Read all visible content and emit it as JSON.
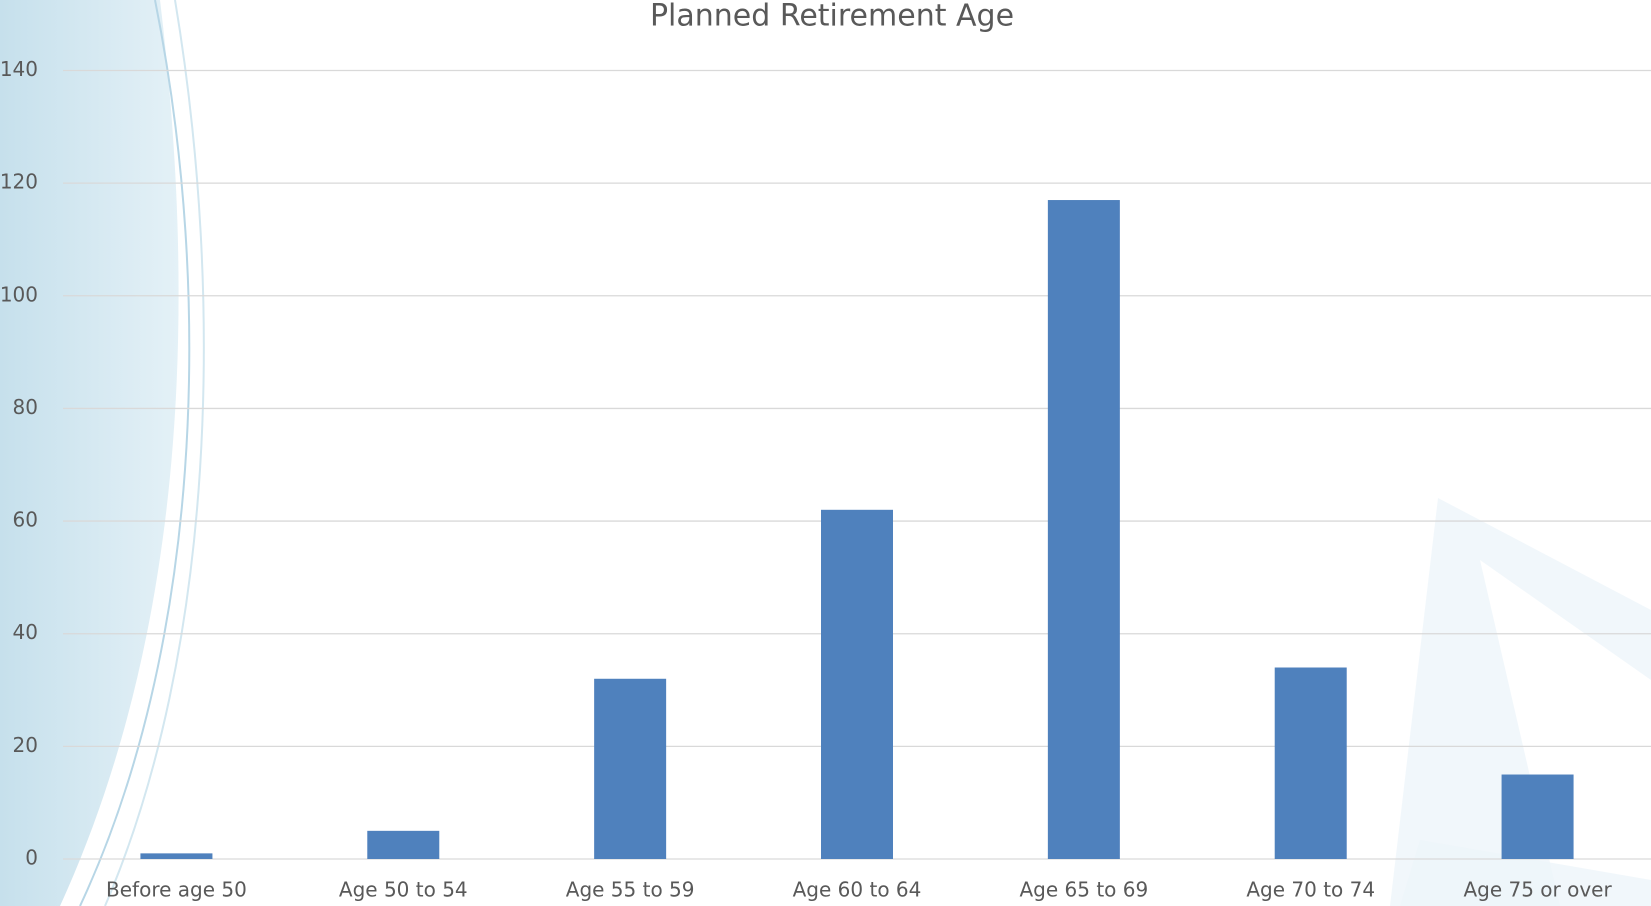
{
  "chart_data": {
    "type": "bar",
    "title": "Planned Retirement Age",
    "categories": [
      "Before age 50",
      "Age 50 to 54",
      "Age 55 to 59",
      "Age 60 to 64",
      "Age 65 to 69",
      "Age 70 to 74",
      "Age 75 or over"
    ],
    "values": [
      1,
      5,
      32,
      62,
      117,
      34,
      15
    ],
    "color": "#4f81bd",
    "ylim": [
      0,
      140
    ],
    "yticks": [
      0,
      20,
      40,
      60,
      80,
      100,
      120,
      140
    ],
    "grid": true
  }
}
